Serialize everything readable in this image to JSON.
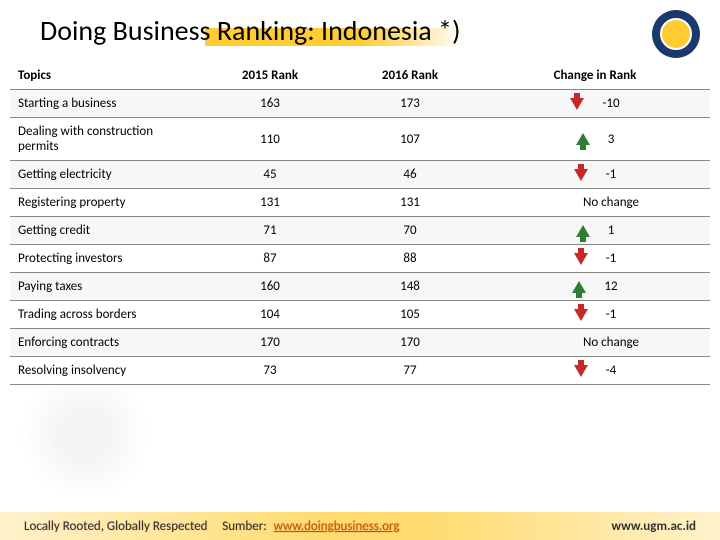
{
  "title": "Doing Business Ranking: Indonesia *)",
  "columns": {
    "topic": "Topics",
    "rank2015": "2015 Rank",
    "rank2016": "2016 Rank",
    "change": "Change in Rank"
  },
  "rows": [
    {
      "topic": "Starting a business",
      "r2015": "163",
      "r2016": "173",
      "dir": "down",
      "change": "-10"
    },
    {
      "topic": "Dealing with construction permits",
      "r2015": "110",
      "r2016": "107",
      "dir": "up",
      "change": "3"
    },
    {
      "topic": "Getting electricity",
      "r2015": "45",
      "r2016": "46",
      "dir": "down",
      "change": "-1"
    },
    {
      "topic": "Registering property",
      "r2015": "131",
      "r2016": "131",
      "dir": "none",
      "change": "No change"
    },
    {
      "topic": "Getting credit",
      "r2015": "71",
      "r2016": "70",
      "dir": "up",
      "change": "1"
    },
    {
      "topic": "Protecting investors",
      "r2015": "87",
      "r2016": "88",
      "dir": "down",
      "change": "-1"
    },
    {
      "topic": "Paying taxes",
      "r2015": "160",
      "r2016": "148",
      "dir": "up",
      "change": "12"
    },
    {
      "topic": "Trading across borders",
      "r2015": "104",
      "r2016": "105",
      "dir": "down",
      "change": "-1"
    },
    {
      "topic": "Enforcing contracts",
      "r2015": "170",
      "r2016": "170",
      "dir": "none",
      "change": "No change"
    },
    {
      "topic": "Resolving insolvency",
      "r2015": "73",
      "r2016": "77",
      "dir": "down",
      "change": "-4"
    }
  ],
  "footer": {
    "left": "Locally Rooted, Globally Respected",
    "source_label": "Sumber:",
    "source_link": "www.doingbusiness.org",
    "right": "www.ugm.ac.id"
  },
  "colors": {
    "up": "#2e7d32",
    "down": "#c62828",
    "accent": "#ffcc33"
  }
}
